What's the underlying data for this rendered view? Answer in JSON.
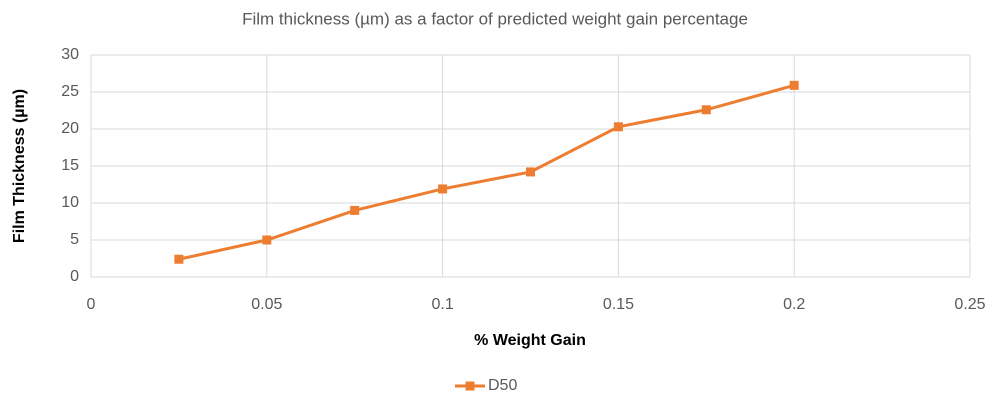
{
  "chart_data": {
    "type": "line",
    "title": "Film thickness (µm) as a factor of predicted weight gain percentage",
    "x_label": "% Weight Gain",
    "y_label": "Film Thickness (µm)",
    "x": [
      0.025,
      0.05,
      0.075,
      0.1,
      0.125,
      0.15,
      0.175,
      0.2
    ],
    "series": [
      {
        "name": "D50",
        "color": "#ed7d31",
        "values": [
          2.4,
          5,
          9,
          11.9,
          14.2,
          20.3,
          22.6,
          25.9
        ]
      }
    ],
    "xlim": [
      0,
      0.25
    ],
    "xticks": [
      0,
      0.05,
      0.1,
      0.15,
      0.2,
      0.25
    ],
    "ylim": [
      0,
      30
    ],
    "yticks": [
      0,
      5,
      10,
      15,
      20,
      25,
      30
    ],
    "grid": true,
    "legend": "bottom"
  }
}
